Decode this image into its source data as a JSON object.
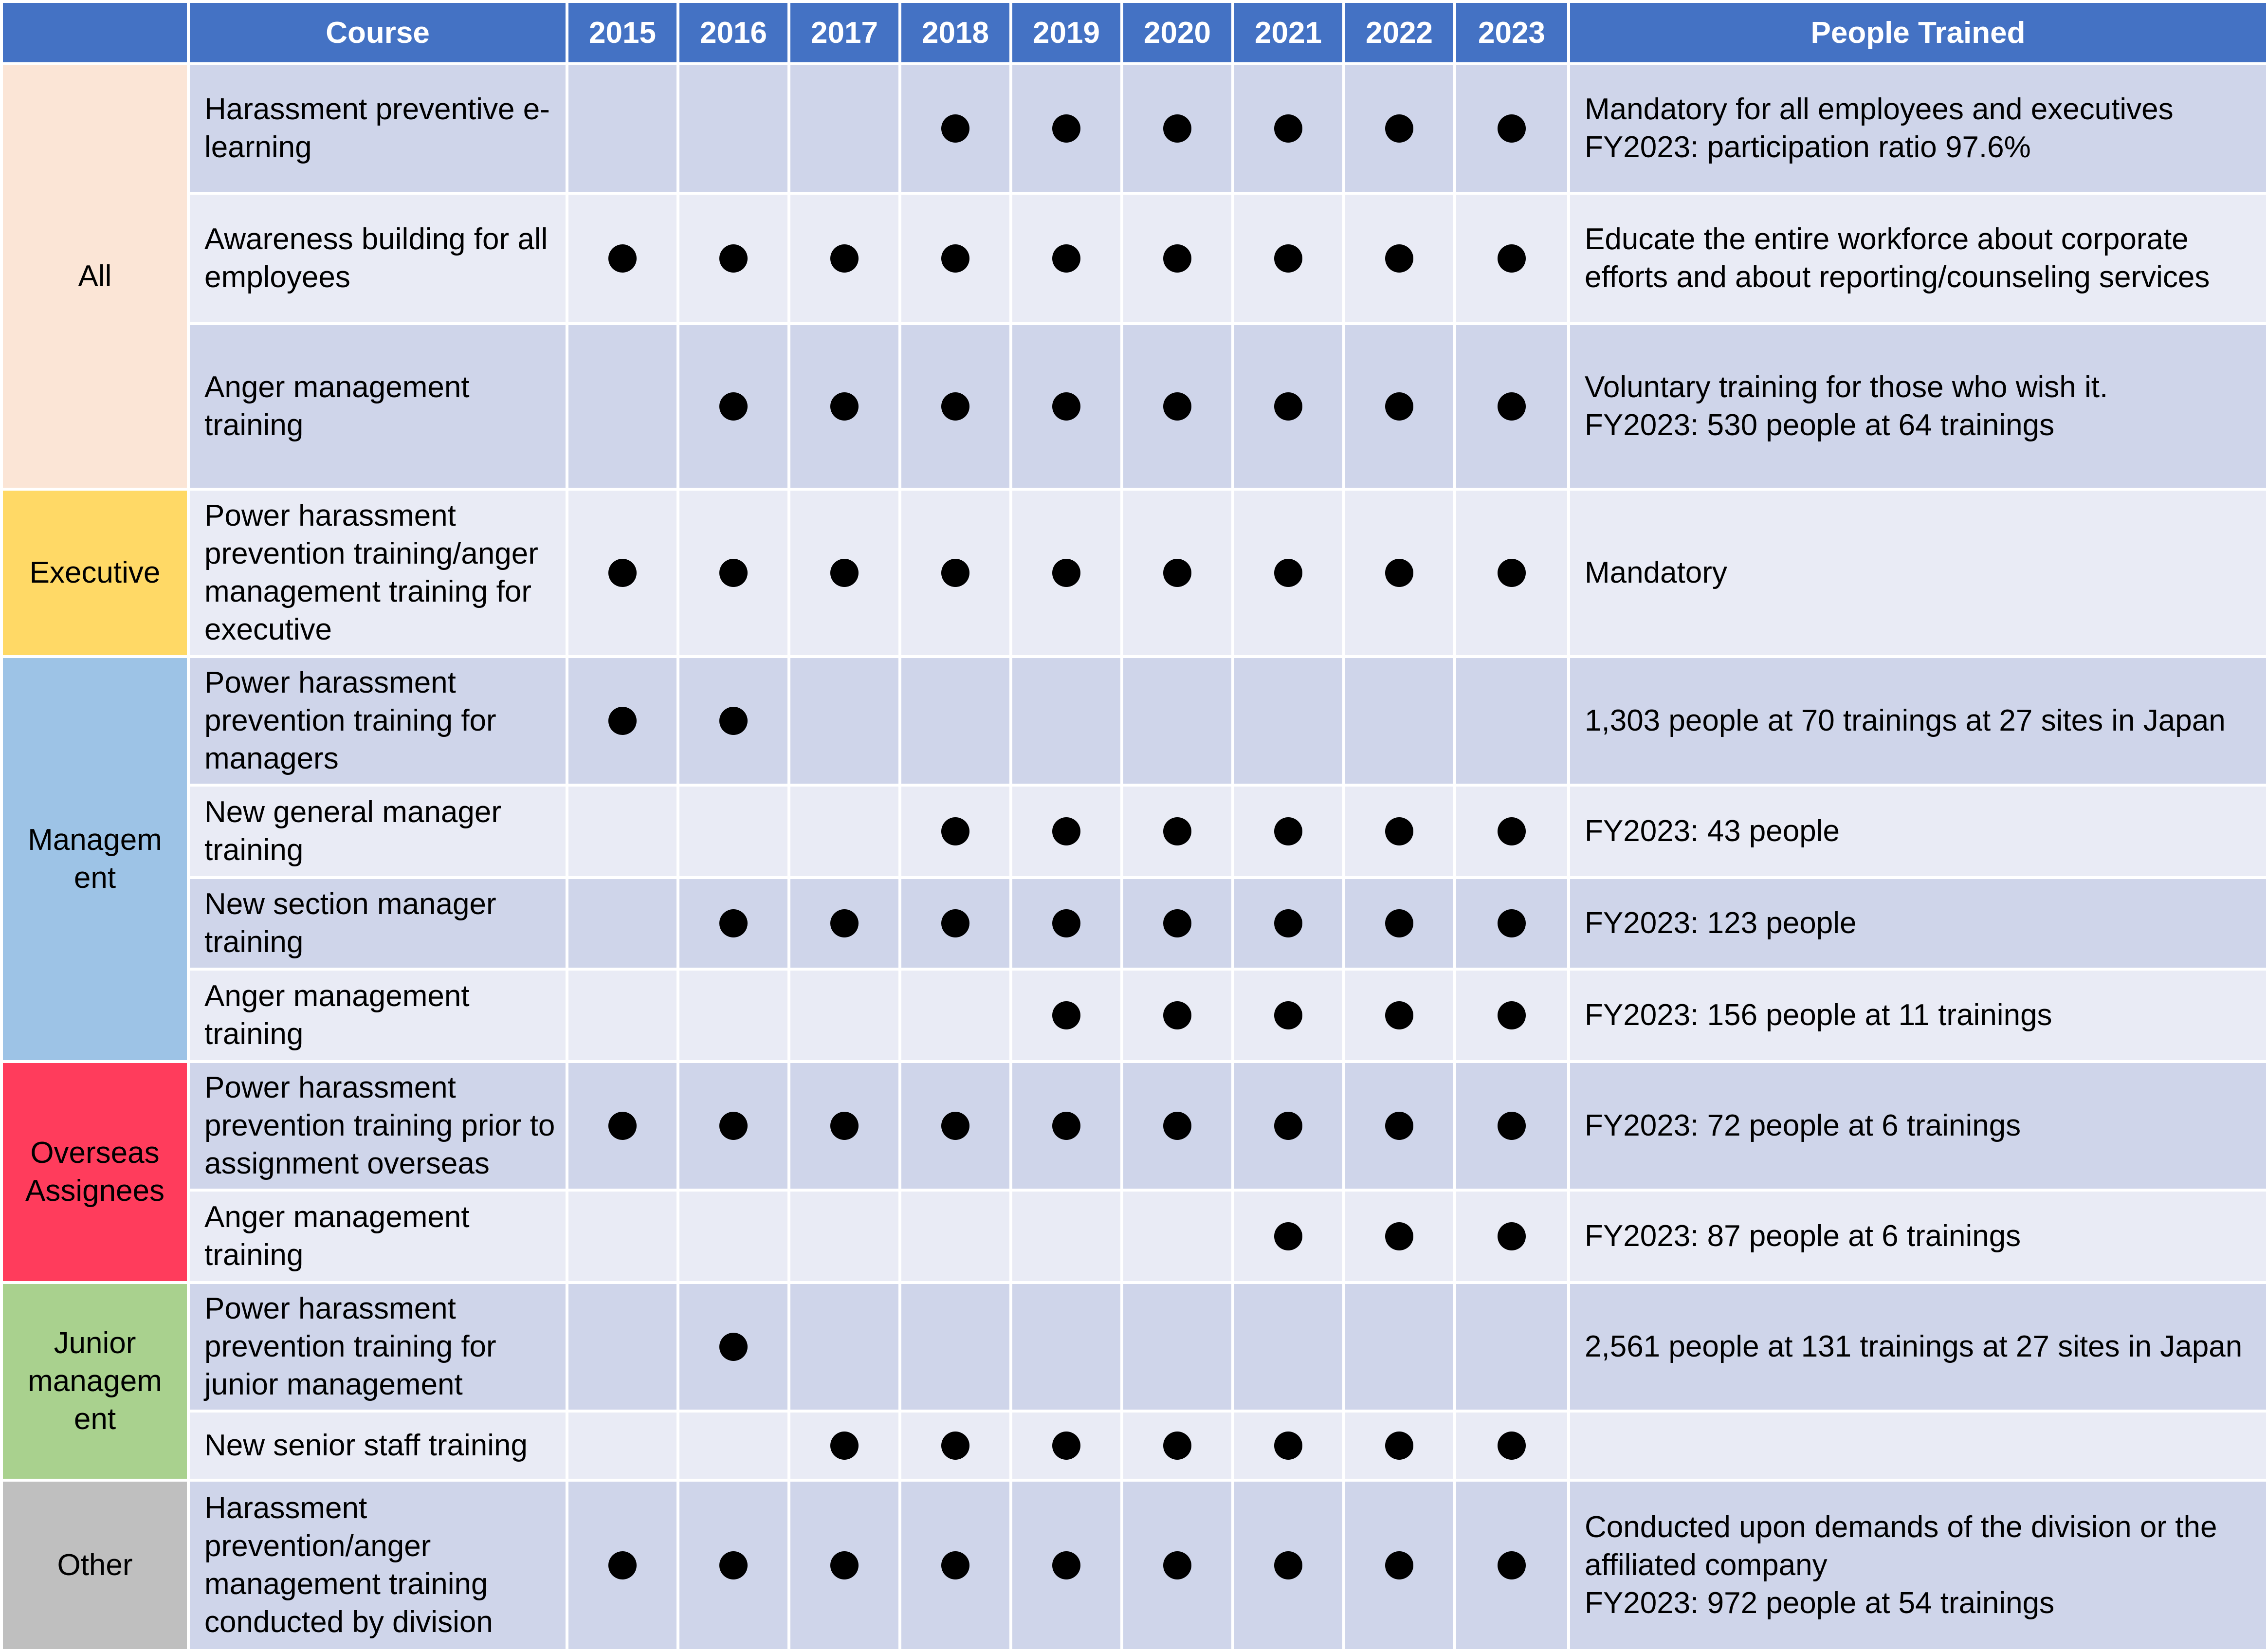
{
  "headers": {
    "course": "Course",
    "years": [
      "2015",
      "2016",
      "2017",
      "2018",
      "2019",
      "2020",
      "2021",
      "2022",
      "2023"
    ],
    "people": "People Trained"
  },
  "categories": [
    {
      "name": "All",
      "color": "#FBE5D6"
    },
    {
      "name": "Executive",
      "color": "#FFD966"
    },
    {
      "name": "Managem ent",
      "color": "#9DC3E6"
    },
    {
      "name": "Overseas Assignees",
      "color": "#FF3C5C"
    },
    {
      "name": "Junior managem ent",
      "color": "#A9D18E"
    },
    {
      "name": "Other",
      "color": "#BFBFBF"
    }
  ],
  "rows": [
    {
      "category": 0,
      "course": "Harassment preventive e-learning",
      "years": [
        false,
        false,
        false,
        true,
        true,
        true,
        true,
        true,
        true
      ],
      "people": "Mandatory for all employees and executives\nFY2023: participation ratio 97.6%"
    },
    {
      "category": 0,
      "course": "Awareness building for all employees",
      "years": [
        true,
        true,
        true,
        true,
        true,
        true,
        true,
        true,
        true
      ],
      "people": "Educate the entire workforce about corporate efforts and about reporting/counseling services"
    },
    {
      "category": 0,
      "course": "Anger management training",
      "years": [
        false,
        true,
        true,
        true,
        true,
        true,
        true,
        true,
        true
      ],
      "people": "Voluntary training for those who wish it.\nFY2023: 530 people at 64 trainings"
    },
    {
      "category": 1,
      "course": "Power harassment prevention training/anger management training for executive",
      "years": [
        true,
        true,
        true,
        true,
        true,
        true,
        true,
        true,
        true
      ],
      "people": "Mandatory"
    },
    {
      "category": 2,
      "course": "Power harassment prevention training for managers",
      "years": [
        true,
        true,
        false,
        false,
        false,
        false,
        false,
        false,
        false
      ],
      "people": "1,303 people at 70 trainings at 27 sites in Japan"
    },
    {
      "category": 2,
      "course": "New general manager training",
      "years": [
        false,
        false,
        false,
        true,
        true,
        true,
        true,
        true,
        true
      ],
      "people": "FY2023: 43 people"
    },
    {
      "category": 2,
      "course": "New section manager training",
      "years": [
        false,
        true,
        true,
        true,
        true,
        true,
        true,
        true,
        true
      ],
      "people": "FY2023: 123 people"
    },
    {
      "category": 2,
      "course": "Anger management training",
      "years": [
        false,
        false,
        false,
        false,
        true,
        true,
        true,
        true,
        true
      ],
      "people": "FY2023: 156 people at 11 trainings"
    },
    {
      "category": 3,
      "course": "Power harassment prevention training prior to assignment overseas",
      "years": [
        true,
        true,
        true,
        true,
        true,
        true,
        true,
        true,
        true
      ],
      "people": "FY2023: 72 people at 6 trainings"
    },
    {
      "category": 3,
      "course": "Anger management training",
      "years": [
        false,
        false,
        false,
        false,
        false,
        false,
        true,
        true,
        true
      ],
      "people": "FY2023: 87 people at 6 trainings"
    },
    {
      "category": 4,
      "course": "Power harassment prevention training for junior management",
      "years": [
        false,
        true,
        false,
        false,
        false,
        false,
        false,
        false,
        false
      ],
      "people": "2,561 people at 131 trainings at 27 sites in Japan"
    },
    {
      "category": 4,
      "course": "New senior staff training",
      "years": [
        false,
        false,
        true,
        true,
        true,
        true,
        true,
        true,
        true
      ],
      "people": ""
    },
    {
      "category": 5,
      "course": "Harassment prevention/anger management training conducted by division",
      "years": [
        true,
        true,
        true,
        true,
        true,
        true,
        true,
        true,
        true
      ],
      "people": "Conducted upon demands of the division or the affiliated company\nFY2023: 972 people at 54 trainings"
    }
  ]
}
